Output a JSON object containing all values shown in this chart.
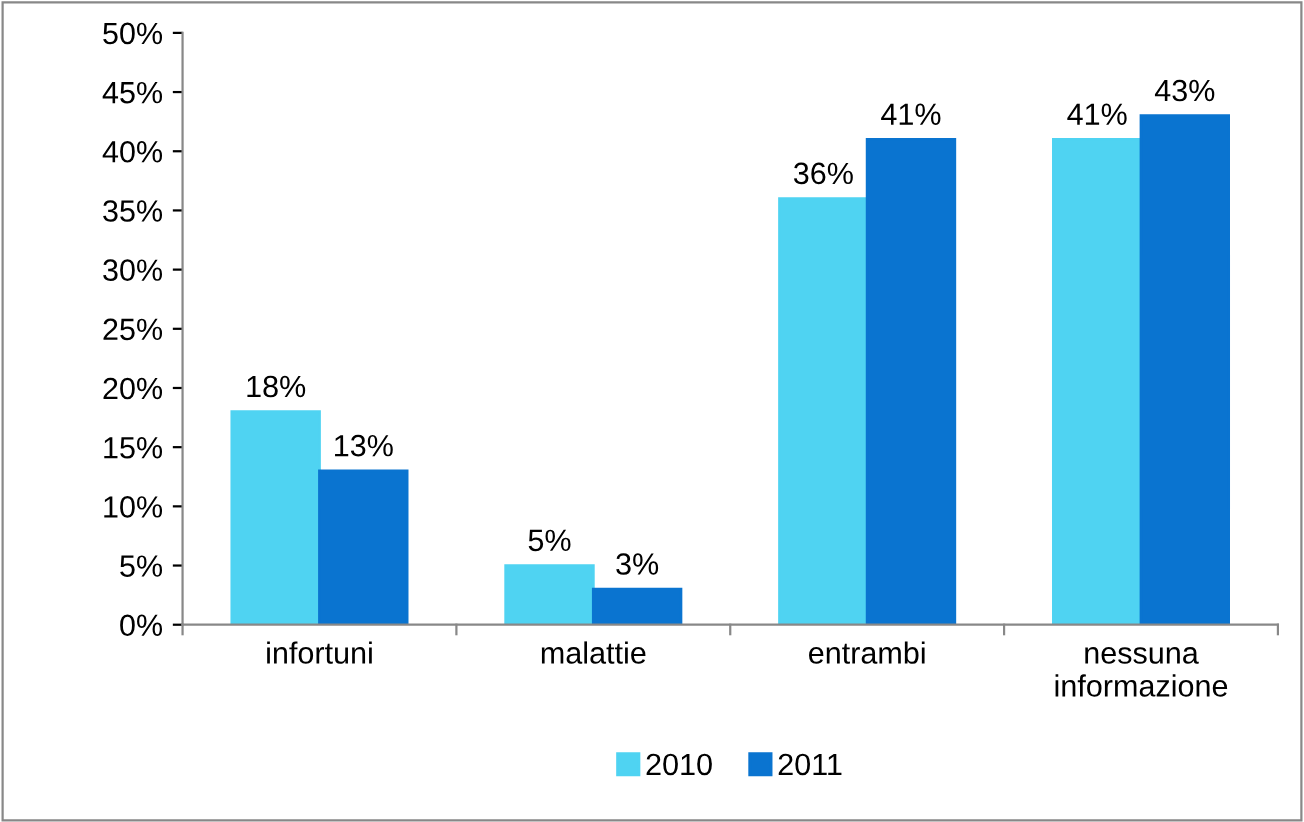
{
  "chart_data": {
    "type": "bar",
    "categories": [
      "infortuni",
      "malattie",
      "entrambi",
      "nessuna\ninformazione"
    ],
    "series": [
      {
        "name": "2010",
        "color": "#4fd3f2",
        "values": [
          18,
          5,
          36,
          41
        ],
        "value_labels": [
          "18%",
          "5%",
          "36%",
          "41%"
        ]
      },
      {
        "name": "2011",
        "color": "#0a74d0",
        "values": [
          13,
          3,
          41,
          43
        ],
        "value_labels": [
          "13%",
          "3%",
          "41%",
          "43%"
        ]
      }
    ],
    "ylim": [
      0,
      50
    ],
    "yticks": [
      {
        "value": 0,
        "label": "0%"
      },
      {
        "value": 5,
        "label": "5%"
      },
      {
        "value": 10,
        "label": "10%"
      },
      {
        "value": 15,
        "label": "15%"
      },
      {
        "value": 20,
        "label": "20%"
      },
      {
        "value": 25,
        "label": "25%"
      },
      {
        "value": 30,
        "label": "30%"
      },
      {
        "value": 35,
        "label": "35%"
      },
      {
        "value": 40,
        "label": "40%"
      },
      {
        "value": 45,
        "label": "45%"
      },
      {
        "value": 50,
        "label": "50%"
      }
    ],
    "grid": false,
    "legend": "bottom"
  }
}
